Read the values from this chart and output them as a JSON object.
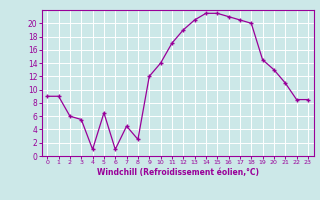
{
  "x": [
    0,
    1,
    2,
    3,
    4,
    5,
    6,
    7,
    8,
    9,
    10,
    11,
    12,
    13,
    14,
    15,
    16,
    17,
    18,
    19,
    20,
    21,
    22,
    23
  ],
  "y": [
    9,
    9,
    6,
    5.5,
    1,
    6.5,
    1,
    4.5,
    2.5,
    12,
    14,
    17,
    19,
    20.5,
    21.5,
    21.5,
    21,
    20.5,
    20,
    14.5,
    13,
    11,
    8.5,
    8.5
  ],
  "line_color": "#990099",
  "marker": "+",
  "bg_color": "#cce8e8",
  "grid_color": "#b0d8d8",
  "xlabel": "Windchill (Refroidissement éolien,°C)",
  "xlabel_color": "#990099",
  "xlim": [
    -0.5,
    23.5
  ],
  "ylim": [
    0,
    22
  ],
  "yticks": [
    0,
    2,
    4,
    6,
    8,
    10,
    12,
    14,
    16,
    18,
    20
  ],
  "xticks": [
    0,
    1,
    2,
    3,
    4,
    5,
    6,
    7,
    8,
    9,
    10,
    11,
    12,
    13,
    14,
    15,
    16,
    17,
    18,
    19,
    20,
    21,
    22,
    23
  ],
  "tick_color": "#990099",
  "spine_color": "#990099",
  "fig_width": 3.2,
  "fig_height": 2.0,
  "dpi": 100
}
